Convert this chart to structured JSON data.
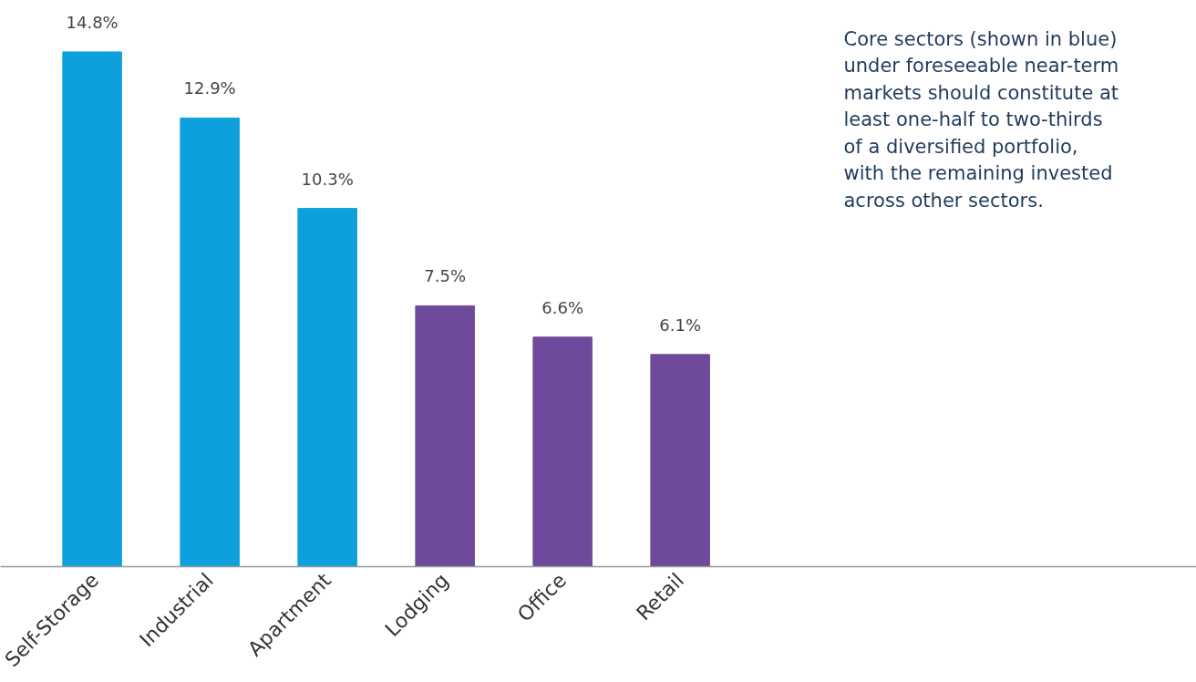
{
  "chart_data": {
    "type": "bar",
    "categories": [
      "Self-Storage",
      "Industrial",
      "Apartment",
      "Lodging",
      "Office",
      "Retail"
    ],
    "values": [
      14.8,
      12.9,
      10.3,
      7.5,
      6.6,
      6.1
    ],
    "colors": [
      "#0ea0dc",
      "#0ea0dc",
      "#0ea0dc",
      "#6e4a9c",
      "#6e4a9c",
      "#6e4a9c"
    ],
    "value_labels": [
      "14.8%",
      "12.9%",
      "10.3%",
      "7.5%",
      "6.6%",
      "6.1%"
    ],
    "annotations": [
      "Core sectors (shown in blue) under foreseeable near-term markets should constitute at least one-half to two-thirds of a diversified portfolio, with the remaining invested across other sectors."
    ],
    "grid": false
  }
}
